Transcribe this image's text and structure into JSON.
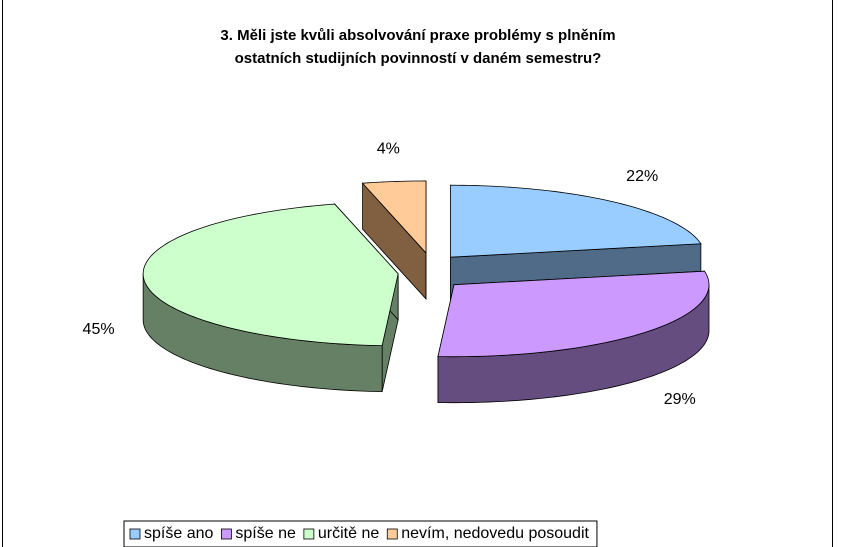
{
  "chart_data": {
    "type": "pie",
    "title": [
      "3. Měli jste kvůli absolvování praxe problémy s plněním",
      "ostatních studijních povinností v daném semestru?"
    ],
    "categories": [
      "spíše ano",
      "spíše ne",
      "určitě ne",
      "nevím, nedovedu posoudit"
    ],
    "values": [
      22,
      29,
      45,
      4
    ],
    "value_labels": [
      "22%",
      "29%",
      "45%",
      "4%"
    ],
    "colors": [
      "#99ccff",
      "#cc99ff",
      "#ccffcc",
      "#ffcc99"
    ],
    "side_colors": [
      "#4f6b87",
      "#664d80",
      "#668066",
      "#806040"
    ],
    "legend": "bottom"
  }
}
